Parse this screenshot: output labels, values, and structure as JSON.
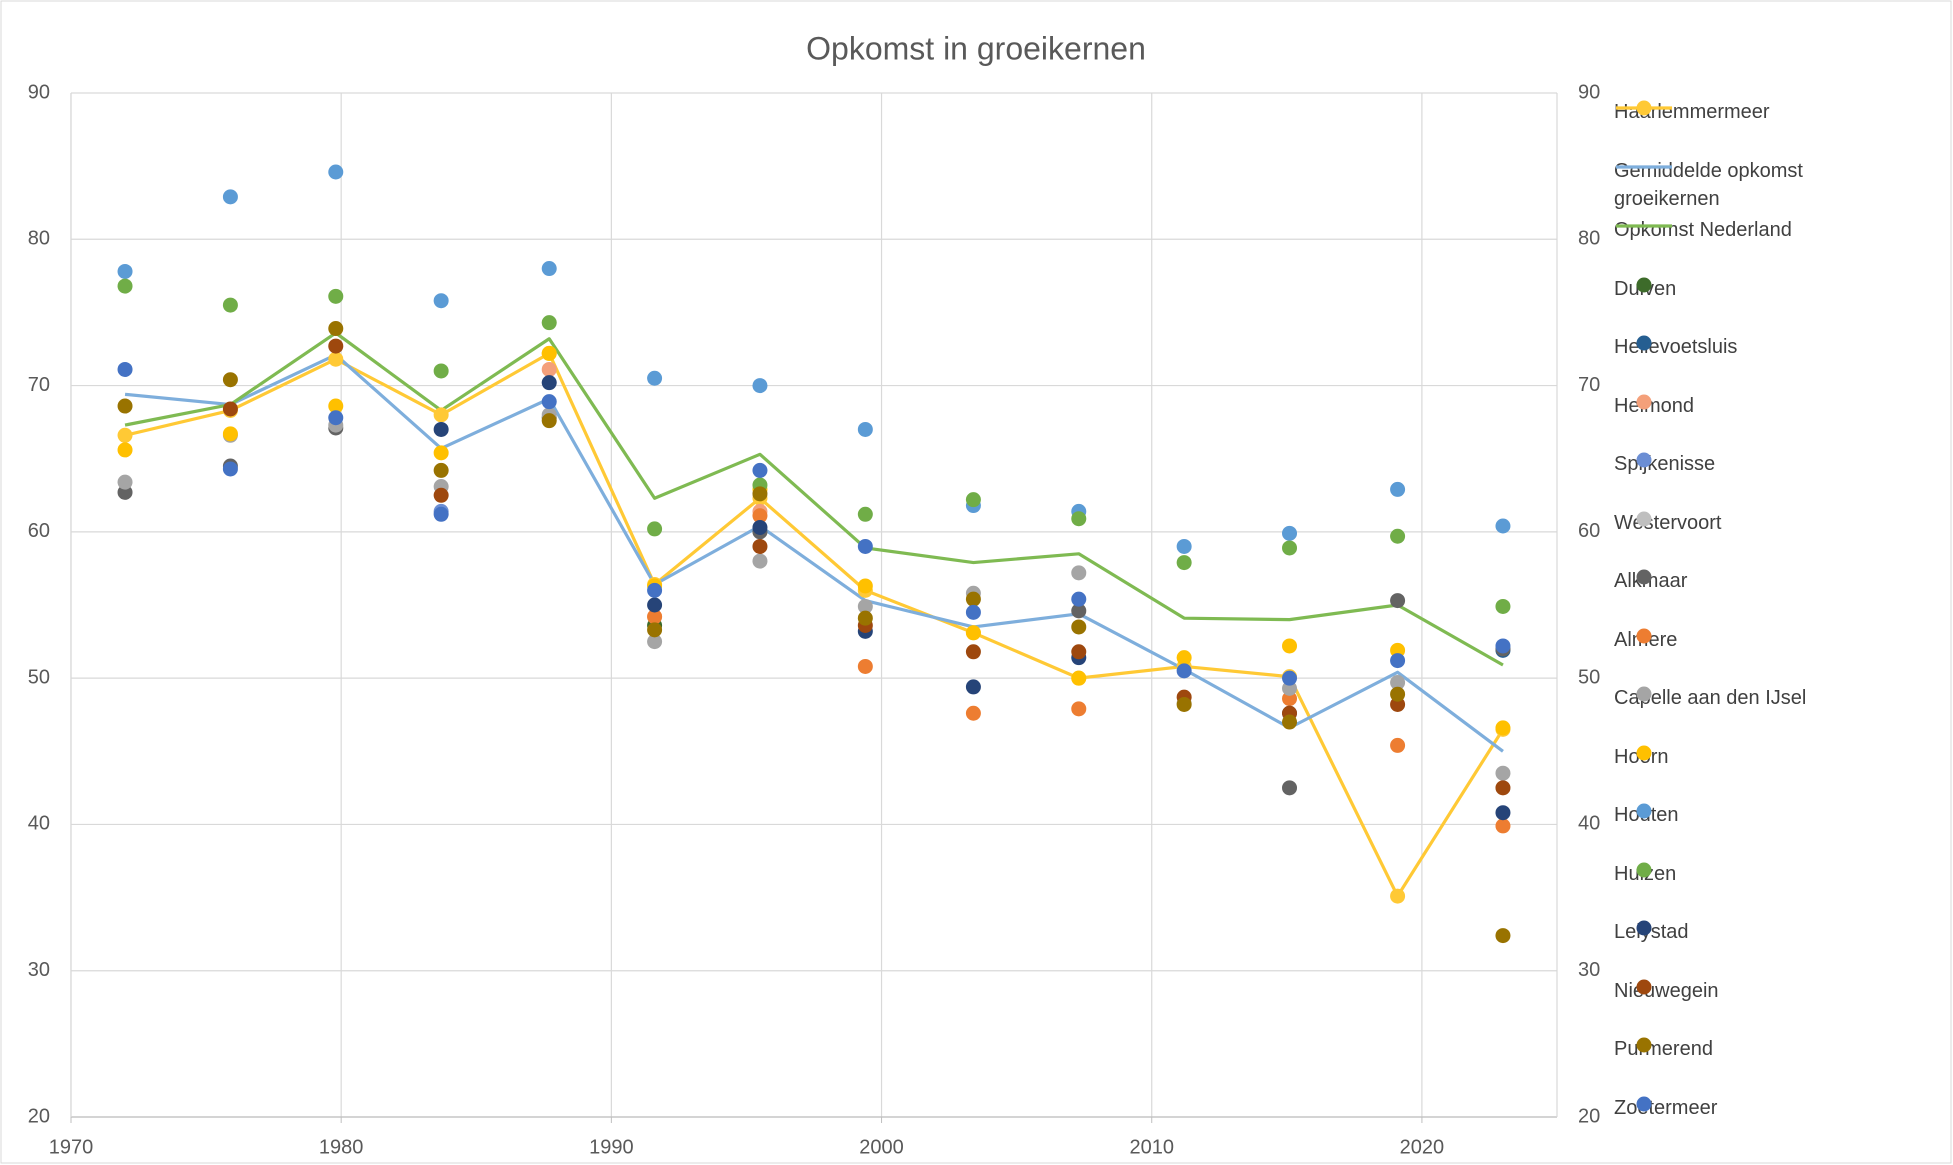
{
  "chart_data": {
    "type": "line",
    "title": "Opkomst in groeikernen",
    "x": [
      1972,
      1975.9,
      1979.8,
      1983.7,
      1987.7,
      1991.6,
      1995.5,
      1999.4,
      2003.4,
      2007.3,
      2011.2,
      2015.1,
      2019.1,
      2023
    ],
    "xlim": [
      1970,
      2025
    ],
    "xticks": [
      1970,
      1980,
      1990,
      2000,
      2010,
      2020
    ],
    "ylim": [
      20,
      90
    ],
    "yticks": [
      20,
      30,
      40,
      50,
      60,
      70,
      80,
      90
    ],
    "y2lim": [
      20,
      90
    ],
    "y2ticks": [
      20,
      30,
      40,
      50,
      60,
      70,
      80,
      90
    ],
    "grid": true,
    "legend": "right",
    "series": [
      {
        "name": "Haarlemmermeer",
        "color": "#ffc935",
        "style": "line+markers",
        "values": [
          66.6,
          68.3,
          71.8,
          68.0,
          72.2,
          56.4,
          62.3,
          56.0,
          53.1,
          50.0,
          50.8,
          50.1,
          35.1,
          46.5
        ]
      },
      {
        "name": "Gemiddelde opkomst groeikernen",
        "color": "#7eaedc",
        "style": "line",
        "values": [
          69.4,
          68.7,
          72.1,
          65.7,
          69.1,
          56.4,
          60.4,
          55.3,
          53.5,
          54.4,
          50.6,
          46.6,
          50.4,
          45.0
        ]
      },
      {
        "name": "Opkomst Nederland",
        "color": "#7fba52",
        "style": "line",
        "values": [
          67.3,
          68.7,
          73.6,
          68.3,
          73.2,
          62.3,
          65.3,
          58.9,
          57.9,
          58.5,
          54.1,
          54.0,
          55.0,
          50.9
        ]
      },
      {
        "name": "Duiven",
        "color": "#3d6b2a",
        "style": "markers",
        "values": [
          null,
          null,
          null,
          null,
          null,
          53.6,
          null,
          null,
          null,
          null,
          null,
          null,
          null,
          null
        ]
      },
      {
        "name": "Hellevoetsluis",
        "color": "#255e91",
        "style": "markers",
        "values": [
          null,
          null,
          null,
          null,
          null,
          null,
          null,
          null,
          null,
          null,
          null,
          null,
          null,
          51.9
        ]
      },
      {
        "name": "Helmond",
        "color": "#f4a07a",
        "style": "markers",
        "values": [
          null,
          null,
          null,
          null,
          71.1,
          54.2,
          61.4,
          null,
          null,
          null,
          null,
          null,
          null,
          null
        ]
      },
      {
        "name": "Spijkenisse",
        "color": "#6b8ed4",
        "style": "markers",
        "values": [
          null,
          null,
          null,
          61.4,
          null,
          null,
          null,
          null,
          null,
          null,
          null,
          null,
          null,
          null
        ]
      },
      {
        "name": "Westervoort",
        "color": "#bfbfbf",
        "style": "markers",
        "values": [
          null,
          null,
          null,
          null,
          null,
          null,
          null,
          null,
          null,
          null,
          48.3,
          null,
          null,
          null
        ]
      },
      {
        "name": "Alkmaar",
        "color": "#636363",
        "style": "markers",
        "values": [
          62.7,
          64.5,
          67.1,
          null,
          67.8,
          null,
          60.0,
          null,
          null,
          54.6,
          null,
          42.5,
          55.3,
          52.0
        ]
      },
      {
        "name": "Almere",
        "color": "#ed7d31",
        "style": "markers",
        "values": [
          null,
          null,
          null,
          null,
          null,
          54.2,
          61.1,
          50.8,
          47.6,
          47.9,
          null,
          48.6,
          45.4,
          39.9
        ]
      },
      {
        "name": "Capelle aan den IJsel",
        "color": "#a5a5a5",
        "style": "markers",
        "values": [
          63.4,
          66.6,
          67.3,
          63.1,
          68.0,
          52.5,
          58.0,
          54.9,
          55.8,
          57.2,
          null,
          49.3,
          49.7,
          43.5
        ]
      },
      {
        "name": "Hoorn",
        "color": "#ffc000",
        "style": "markers",
        "values": [
          65.6,
          66.7,
          68.6,
          65.4,
          72.2,
          56.3,
          62.9,
          56.3,
          53.1,
          50.0,
          51.4,
          52.2,
          51.9,
          46.6
        ]
      },
      {
        "name": "Houten",
        "color": "#5b9bd5",
        "style": "markers",
        "values": [
          77.8,
          82.9,
          84.6,
          75.8,
          78.0,
          70.5,
          70.0,
          67.0,
          61.8,
          61.4,
          59.0,
          59.9,
          62.9,
          60.4
        ]
      },
      {
        "name": "Huizen",
        "color": "#70ad47",
        "style": "markers",
        "values": [
          76.8,
          75.5,
          76.1,
          71.0,
          74.3,
          60.2,
          63.2,
          61.2,
          62.2,
          60.9,
          57.9,
          58.9,
          59.7,
          54.9
        ]
      },
      {
        "name": "Lelystad",
        "color": "#264478",
        "style": "markers",
        "values": [
          null,
          null,
          null,
          67.0,
          70.2,
          55.0,
          60.3,
          53.2,
          49.4,
          51.4,
          null,
          47.6,
          null,
          40.8
        ]
      },
      {
        "name": "Nieuwegein",
        "color": "#9e480e",
        "style": "markers",
        "values": [
          null,
          68.4,
          72.7,
          62.5,
          null,
          null,
          59.0,
          53.6,
          51.8,
          51.8,
          48.7,
          47.6,
          48.2,
          42.5
        ]
      },
      {
        "name": "Purmerend",
        "color": "#997300",
        "style": "markers",
        "values": [
          68.6,
          70.4,
          73.9,
          64.2,
          67.6,
          53.3,
          62.6,
          54.1,
          55.4,
          53.5,
          48.2,
          47.0,
          48.9,
          32.4
        ]
      },
      {
        "name": "Zoetermeer",
        "color": "#4472c4",
        "style": "markers",
        "values": [
          71.1,
          64.3,
          67.8,
          61.2,
          68.9,
          56.0,
          64.2,
          59.0,
          54.5,
          55.4,
          50.5,
          50.0,
          51.2,
          52.2
        ]
      }
    ]
  }
}
